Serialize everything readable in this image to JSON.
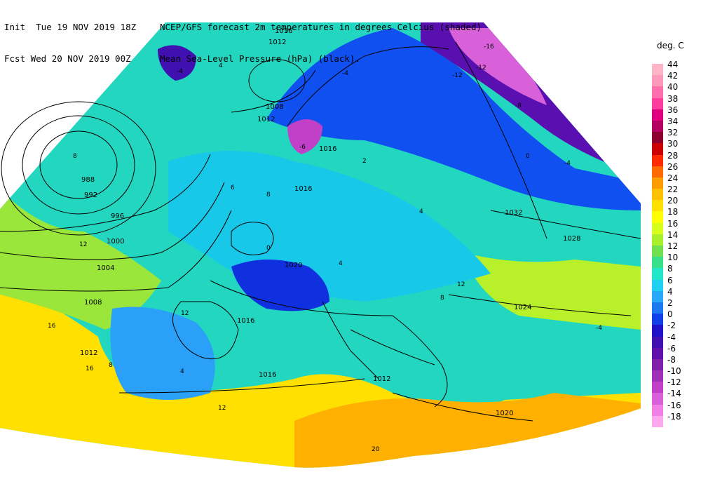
{
  "header": {
    "line1_label": "Init  Tue 19 NOV 2019 18Z",
    "line1_text": "NCEP/GFS forecast 2m temperatures in degrees Celcius (shaded)",
    "line2_label": "Fcst Wed 20 NOV 2019 00Z",
    "line2_text": "Mean Sea-Level Pressure (hPa) (black)."
  },
  "legend": {
    "title": "deg. C",
    "items": [
      {
        "label": "44",
        "color": "#ffb3c6"
      },
      {
        "label": "42",
        "color": "#ff99bb"
      },
      {
        "label": "40",
        "color": "#ff6fae"
      },
      {
        "label": "38",
        "color": "#ff3d9e"
      },
      {
        "label": "36",
        "color": "#e0007f"
      },
      {
        "label": "34",
        "color": "#b40060"
      },
      {
        "label": "32",
        "color": "#8c0030"
      },
      {
        "label": "30",
        "color": "#cc0000"
      },
      {
        "label": "28",
        "color": "#ff2a00"
      },
      {
        "label": "26",
        "color": "#ff6a00"
      },
      {
        "label": "24",
        "color": "#ff9d00"
      },
      {
        "label": "22",
        "color": "#ffc000"
      },
      {
        "label": "20",
        "color": "#ffe000"
      },
      {
        "label": "18",
        "color": "#ffff00"
      },
      {
        "label": "16",
        "color": "#d7ff1a"
      },
      {
        "label": "14",
        "color": "#a8f02a"
      },
      {
        "label": "12",
        "color": "#70e050"
      },
      {
        "label": "10",
        "color": "#38e08a"
      },
      {
        "label": "8",
        "color": "#20e8c8"
      },
      {
        "label": "6",
        "color": "#20d0f0"
      },
      {
        "label": "4",
        "color": "#28a8f8"
      },
      {
        "label": "2",
        "color": "#1e78f0"
      },
      {
        "label": "0",
        "color": "#1040e8"
      },
      {
        "label": "-2",
        "color": "#2010c8"
      },
      {
        "label": "-4",
        "color": "#4010b0"
      },
      {
        "label": "-6",
        "color": "#6010a8"
      },
      {
        "label": "-8",
        "color": "#8020a8"
      },
      {
        "label": "-10",
        "color": "#a030b8"
      },
      {
        "label": "-12",
        "color": "#c040c8"
      },
      {
        "label": "-14",
        "color": "#d860d8"
      },
      {
        "label": "-16",
        "color": "#f080e8"
      },
      {
        "label": "-18",
        "color": "#ffa8f0"
      }
    ]
  },
  "isobar_labels": [
    "1016",
    "1012",
    "1008",
    "1012",
    "988",
    "992",
    "996",
    "1000",
    "1004",
    "1008",
    "1012",
    "1016",
    "1020",
    "1016",
    "1016",
    "1012",
    "1016",
    "1020",
    "1024",
    "1028",
    "1032"
  ],
  "temperature_labels": [
    "-16",
    "-12",
    "-12",
    "-8",
    "-4",
    "-4",
    "-6",
    "-4",
    "-4",
    "0",
    "0",
    "2",
    "4",
    "4",
    "4",
    "4",
    "6",
    "8",
    "8",
    "8",
    "8",
    "12",
    "12",
    "12",
    "12",
    "16",
    "16",
    "20"
  ]
}
